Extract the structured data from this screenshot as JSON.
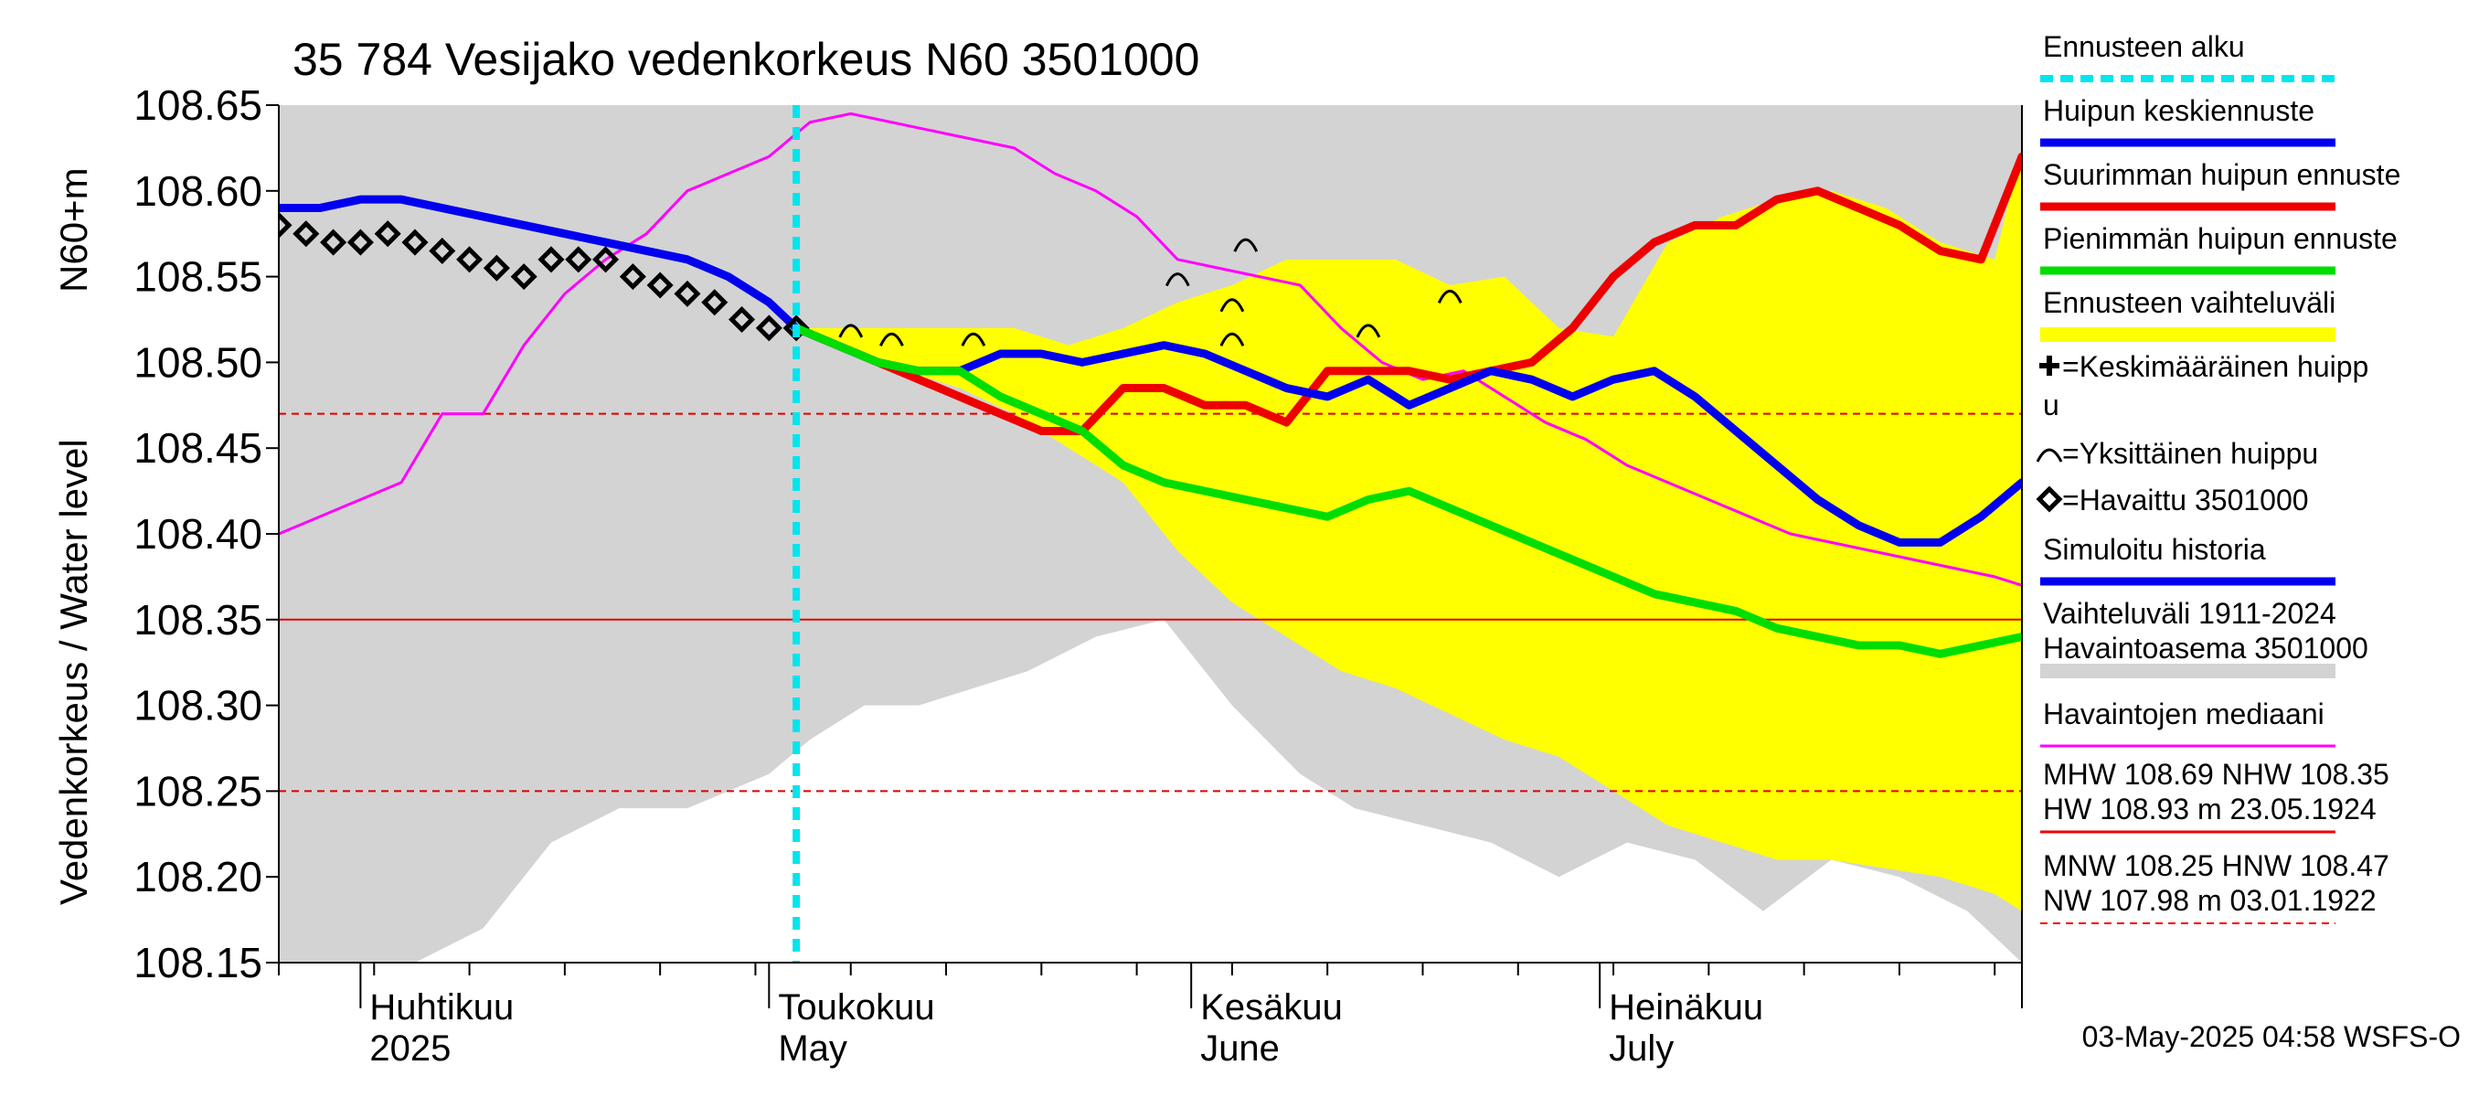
{
  "chart_data": {
    "type": "line",
    "title": "35 784 Vesijako vedenkorkeus N60 3501000",
    "ylabel": "Vedenkorkeus / Water level",
    "yunit": "N60+m",
    "ylim": [
      108.15,
      108.65
    ],
    "yticks": [
      "108.65",
      "108.60",
      "108.55",
      "108.50",
      "108.45",
      "108.40",
      "108.35",
      "108.30",
      "108.25",
      "108.20",
      "108.15"
    ],
    "xlim": [
      "2025-03-26",
      "2025-08-01"
    ],
    "x_month_labels": [
      {
        "date": "2025-04-01",
        "fi": "Huhtikuu",
        "en": "2025"
      },
      {
        "date": "2025-05-01",
        "fi": "Toukokuu",
        "en": "May"
      },
      {
        "date": "2025-06-01",
        "fi": "Kesäkuu",
        "en": "June"
      },
      {
        "date": "2025-07-01",
        "fi": "Heinäkuu",
        "en": "July"
      }
    ],
    "forecast_start": "2025-05-03",
    "timestamp": "03-May-2025 04:58 WSFS-O",
    "hlines": [
      {
        "value": 108.35,
        "style": "solid",
        "color": "#e00000"
      },
      {
        "value": 108.47,
        "style": "dashed",
        "color": "#e00000"
      },
      {
        "value": 108.25,
        "style": "dashed",
        "color": "#e00000"
      }
    ],
    "historical_range": {
      "x": [
        "2025-03-26",
        "2025-04-05",
        "2025-04-10",
        "2025-04-15",
        "2025-04-20",
        "2025-04-25",
        "2025-05-01",
        "2025-05-04",
        "2025-05-08",
        "2025-05-12",
        "2025-05-16",
        "2025-05-20",
        "2025-05-25",
        "2025-05-30",
        "2025-06-04",
        "2025-06-09",
        "2025-06-13",
        "2025-06-18",
        "2025-06-23",
        "2025-06-28",
        "2025-07-03",
        "2025-07-08",
        "2025-07-13",
        "2025-07-18",
        "2025-07-23",
        "2025-07-28",
        "2025-08-01"
      ],
      "upper": [
        108.65,
        108.65,
        108.65,
        108.65,
        108.65,
        108.65,
        108.65,
        108.65,
        108.65,
        108.65,
        108.65,
        108.65,
        108.65,
        108.65,
        108.65,
        108.65,
        108.65,
        108.65,
        108.65,
        108.65,
        108.65,
        108.65,
        108.65,
        108.65,
        108.65,
        108.65,
        108.65
      ],
      "lower": [
        108.15,
        108.15,
        108.17,
        108.22,
        108.24,
        108.24,
        108.26,
        108.28,
        108.3,
        108.3,
        108.31,
        108.32,
        108.34,
        108.35,
        108.3,
        108.26,
        108.24,
        108.23,
        108.22,
        108.2,
        108.22,
        108.21,
        108.18,
        108.21,
        108.2,
        108.18,
        108.15
      ]
    },
    "forecast_range": {
      "x": [
        "2025-05-03",
        "2025-05-07",
        "2025-05-11",
        "2025-05-15",
        "2025-05-19",
        "2025-05-23",
        "2025-05-27",
        "2025-05-31",
        "2025-06-04",
        "2025-06-08",
        "2025-06-12",
        "2025-06-16",
        "2025-06-20",
        "2025-06-24",
        "2025-06-28",
        "2025-07-02",
        "2025-07-06",
        "2025-07-10",
        "2025-07-14",
        "2025-07-18",
        "2025-07-22",
        "2025-07-26",
        "2025-07-30",
        "2025-08-01"
      ],
      "upper": [
        108.52,
        108.52,
        108.52,
        108.52,
        108.52,
        108.51,
        108.52,
        108.535,
        108.545,
        108.56,
        108.56,
        108.56,
        108.545,
        108.55,
        108.52,
        108.515,
        108.57,
        108.585,
        108.595,
        108.6,
        108.59,
        108.57,
        108.56,
        108.625
      ],
      "lower": [
        108.52,
        108.505,
        108.495,
        108.485,
        108.47,
        108.45,
        108.43,
        108.39,
        108.36,
        108.34,
        108.32,
        108.31,
        108.295,
        108.28,
        108.27,
        108.25,
        108.23,
        108.22,
        108.21,
        108.21,
        108.205,
        108.2,
        108.19,
        108.18
      ]
    },
    "series": [
      {
        "name": "Havaintojen mediaani",
        "color": "#ff00ff",
        "x": [
          "2025-03-26",
          "2025-03-29",
          "2025-04-01",
          "2025-04-04",
          "2025-04-07",
          "2025-04-10",
          "2025-04-13",
          "2025-04-16",
          "2025-04-19",
          "2025-04-22",
          "2025-04-25",
          "2025-04-28",
          "2025-05-01",
          "2025-05-04",
          "2025-05-07",
          "2025-05-10",
          "2025-05-13",
          "2025-05-16",
          "2025-05-19",
          "2025-05-22",
          "2025-05-25",
          "2025-05-28",
          "2025-05-31",
          "2025-06-03",
          "2025-06-06",
          "2025-06-09",
          "2025-06-12",
          "2025-06-15",
          "2025-06-18",
          "2025-06-21",
          "2025-06-24",
          "2025-06-27",
          "2025-06-30",
          "2025-07-03",
          "2025-07-06",
          "2025-07-09",
          "2025-07-12",
          "2025-07-15",
          "2025-07-18",
          "2025-07-21",
          "2025-07-24",
          "2025-07-27",
          "2025-07-30",
          "2025-08-01"
        ],
        "y": [
          108.4,
          108.41,
          108.42,
          108.43,
          108.47,
          108.47,
          108.51,
          108.54,
          108.56,
          108.575,
          108.6,
          108.61,
          108.62,
          108.64,
          108.645,
          108.64,
          108.635,
          108.63,
          108.625,
          108.61,
          108.6,
          108.585,
          108.56,
          108.555,
          108.55,
          108.545,
          108.52,
          108.5,
          108.49,
          108.495,
          108.48,
          108.465,
          108.455,
          108.44,
          108.43,
          108.42,
          108.41,
          108.4,
          108.395,
          108.39,
          108.385,
          108.38,
          108.375,
          108.37
        ]
      },
      {
        "name": "Simuloitu historia",
        "color": "#0000ee",
        "x": [
          "2025-03-26",
          "2025-03-29",
          "2025-04-01",
          "2025-04-04",
          "2025-04-07",
          "2025-04-10",
          "2025-04-13",
          "2025-04-16",
          "2025-04-19",
          "2025-04-22",
          "2025-04-25",
          "2025-04-28",
          "2025-05-01",
          "2025-05-03"
        ],
        "y": [
          108.59,
          108.59,
          108.595,
          108.595,
          108.59,
          108.585,
          108.58,
          108.575,
          108.57,
          108.565,
          108.56,
          108.55,
          108.535,
          108.52
        ]
      },
      {
        "name": "Havaittu 3501000",
        "color": "#000000",
        "x": [
          "2025-03-26",
          "2025-03-28",
          "2025-03-30",
          "2025-04-01",
          "2025-04-03",
          "2025-04-05",
          "2025-04-07",
          "2025-04-09",
          "2025-04-11",
          "2025-04-13",
          "2025-04-15",
          "2025-04-17",
          "2025-04-19",
          "2025-04-21",
          "2025-04-23",
          "2025-04-25",
          "2025-04-27",
          "2025-04-29",
          "2025-05-01",
          "2025-05-03"
        ],
        "y": [
          108.58,
          108.575,
          108.57,
          108.57,
          108.575,
          108.57,
          108.565,
          108.56,
          108.555,
          108.55,
          108.56,
          108.56,
          108.56,
          108.55,
          108.545,
          108.54,
          108.535,
          108.525,
          108.52,
          108.52
        ]
      },
      {
        "name": "Suurimman huipun ennuste",
        "color": "#ee0000",
        "x": [
          "2025-05-03",
          "2025-05-06",
          "2025-05-09",
          "2025-05-12",
          "2025-05-15",
          "2025-05-18",
          "2025-05-21",
          "2025-05-24",
          "2025-05-27",
          "2025-05-30",
          "2025-06-02",
          "2025-06-05",
          "2025-06-08",
          "2025-06-11",
          "2025-06-14",
          "2025-06-17",
          "2025-06-20",
          "2025-06-23",
          "2025-06-26",
          "2025-06-29",
          "2025-07-02",
          "2025-07-05",
          "2025-07-08",
          "2025-07-11",
          "2025-07-14",
          "2025-07-17",
          "2025-07-20",
          "2025-07-23",
          "2025-07-26",
          "2025-07-29",
          "2025-08-01"
        ],
        "y": [
          108.52,
          108.51,
          108.5,
          108.49,
          108.48,
          108.47,
          108.46,
          108.46,
          108.485,
          108.485,
          108.475,
          108.475,
          108.465,
          108.495,
          108.495,
          108.495,
          108.49,
          108.495,
          108.5,
          108.52,
          108.55,
          108.57,
          108.58,
          108.58,
          108.595,
          108.6,
          108.59,
          108.58,
          108.565,
          108.56,
          108.62
        ]
      },
      {
        "name": "Huipun keskiennuste",
        "color": "#0000ee",
        "x": [
          "2025-05-03",
          "2025-05-06",
          "2025-05-09",
          "2025-05-12",
          "2025-05-15",
          "2025-05-18",
          "2025-05-21",
          "2025-05-24",
          "2025-05-27",
          "2025-05-30",
          "2025-06-02",
          "2025-06-05",
          "2025-06-08",
          "2025-06-11",
          "2025-06-14",
          "2025-06-17",
          "2025-06-20",
          "2025-06-23",
          "2025-06-26",
          "2025-06-29",
          "2025-07-02",
          "2025-07-05",
          "2025-07-08",
          "2025-07-11",
          "2025-07-14",
          "2025-07-17",
          "2025-07-20",
          "2025-07-23",
          "2025-07-26",
          "2025-07-29",
          "2025-08-01"
        ],
        "y": [
          108.52,
          108.51,
          108.5,
          108.495,
          108.495,
          108.505,
          108.505,
          108.5,
          108.505,
          108.51,
          108.505,
          108.495,
          108.485,
          108.48,
          108.49,
          108.475,
          108.485,
          108.495,
          108.49,
          108.48,
          108.49,
          108.495,
          108.48,
          108.46,
          108.44,
          108.42,
          108.405,
          108.395,
          108.395,
          108.41,
          108.43
        ]
      },
      {
        "name": "Pienimmän huipun ennuste",
        "color": "#00dd00",
        "x": [
          "2025-05-03",
          "2025-05-06",
          "2025-05-09",
          "2025-05-12",
          "2025-05-15",
          "2025-05-18",
          "2025-05-21",
          "2025-05-24",
          "2025-05-27",
          "2025-05-30",
          "2025-06-02",
          "2025-06-05",
          "2025-06-08",
          "2025-06-11",
          "2025-06-14",
          "2025-06-17",
          "2025-06-20",
          "2025-06-23",
          "2025-06-26",
          "2025-06-29",
          "2025-07-02",
          "2025-07-05",
          "2025-07-08",
          "2025-07-11",
          "2025-07-14",
          "2025-07-17",
          "2025-07-20",
          "2025-07-23",
          "2025-07-26",
          "2025-07-29",
          "2025-08-01"
        ],
        "y": [
          108.52,
          108.51,
          108.5,
          108.495,
          108.495,
          108.48,
          108.47,
          108.46,
          108.44,
          108.43,
          108.425,
          108.42,
          108.415,
          108.41,
          108.42,
          108.425,
          108.415,
          108.405,
          108.395,
          108.385,
          108.375,
          108.365,
          108.36,
          108.355,
          108.345,
          108.34,
          108.335,
          108.335,
          108.33,
          108.335,
          108.34
        ]
      }
    ],
    "single_peaks": [
      {
        "x": "2025-05-07",
        "y": 108.52
      },
      {
        "x": "2025-05-10",
        "y": 108.515
      },
      {
        "x": "2025-05-16",
        "y": 108.515
      },
      {
        "x": "2025-05-31",
        "y": 108.55
      },
      {
        "x": "2025-06-04",
        "y": 108.535
      },
      {
        "x": "2025-06-04",
        "y": 108.515
      },
      {
        "x": "2025-06-05",
        "y": 108.57
      },
      {
        "x": "2025-06-14",
        "y": 108.52
      },
      {
        "x": "2025-06-20",
        "y": 108.54
      }
    ],
    "legend": [
      {
        "label": "Ennusteen alku",
        "kind": "dashed",
        "color": "#00e5ee"
      },
      {
        "label": "Huipun keskiennuste",
        "kind": "line",
        "color": "#0000ee"
      },
      {
        "label": "Suurimman huipun ennuste",
        "kind": "line",
        "color": "#ee0000"
      },
      {
        "label": "Pienimmän huipun ennuste",
        "kind": "line",
        "color": "#00dd00"
      },
      {
        "label": "Ennusteen vaihteluväli",
        "kind": "band",
        "color": "#ffff00"
      },
      {
        "label": "=Keskimääräinen huipp",
        "label2": "u",
        "kind": "plus",
        "color": "#000000"
      },
      {
        "label": "=Yksittäinen huippu",
        "kind": "arc",
        "color": "#000000"
      },
      {
        "label": "=Havaittu 3501000",
        "kind": "diamond",
        "color": "#000000"
      },
      {
        "label": "Simuloitu historia",
        "kind": "line",
        "color": "#0000ee"
      },
      {
        "label": "Vaihteluväli 1911-2024",
        "label2": " Havaintoasema 3501000",
        "kind": "band",
        "color": "#d3d3d3"
      },
      {
        "label": "Havaintojen mediaani",
        "kind": "thinline",
        "color": "#ff00ff"
      },
      {
        "label": "MHW 108.69 NHW 108.35",
        "label2": "HW 108.93 m 23.05.1924",
        "kind": "thinline",
        "color": "#ee0000"
      },
      {
        "label": "MNW 108.25 HNW 108.47",
        "label2": "NW 107.98 m 03.01.1922",
        "kind": "dashedred",
        "color": "#ee0000"
      }
    ],
    "grid": false,
    "legend_position": "right"
  }
}
